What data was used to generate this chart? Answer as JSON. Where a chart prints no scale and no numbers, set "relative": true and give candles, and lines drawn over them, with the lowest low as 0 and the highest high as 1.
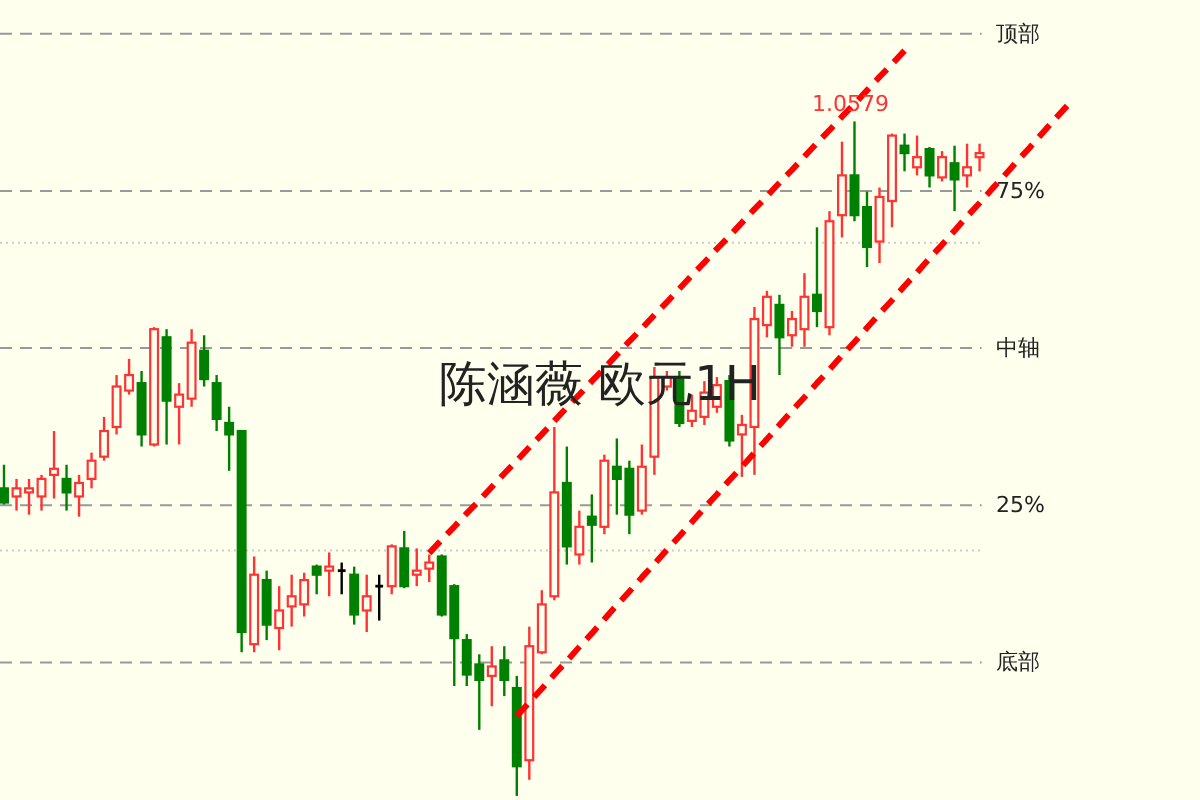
{
  "chart_data": {
    "type": "candlestick",
    "title": "陈涵薇 欧元1H",
    "relative": true,
    "categories": [
      null,
      null,
      null,
      null,
      null,
      null,
      null,
      null,
      null,
      null,
      null,
      null,
      null,
      null,
      null,
      null,
      null,
      null,
      null,
      null,
      null,
      null,
      null,
      null,
      null,
      null,
      null,
      null,
      null,
      null,
      null,
      null,
      null,
      null,
      null,
      null,
      null,
      null,
      null,
      null,
      null,
      null,
      null,
      null,
      null,
      null,
      null,
      null,
      null,
      null,
      null,
      null,
      null,
      null,
      null,
      null,
      null,
      null,
      null,
      null,
      null,
      null,
      null,
      null,
      null,
      null,
      null,
      null,
      null,
      null,
      null,
      null,
      null,
      null,
      null,
      null,
      null,
      null,
      null,
      null,
      null,
      null,
      null,
      null,
      null,
      null
    ],
    "ohlc": [
      [
        0.456,
        0.491,
        0.432,
        0.435
      ],
      [
        0.444,
        0.47,
        0.423,
        0.456
      ],
      [
        0.45,
        0.47,
        0.417,
        0.456
      ],
      [
        0.444,
        0.476,
        0.423,
        0.47
      ],
      [
        0.476,
        0.541,
        0.441,
        0.485
      ],
      [
        0.47,
        0.491,
        0.423,
        0.45
      ],
      [
        0.444,
        0.476,
        0.414,
        0.464
      ],
      [
        0.47,
        0.509,
        0.456,
        0.497
      ],
      [
        0.503,
        0.562,
        0.497,
        0.541
      ],
      [
        0.547,
        0.624,
        0.536,
        0.607
      ],
      [
        0.601,
        0.648,
        0.595,
        0.624
      ],
      [
        0.612,
        0.63,
        0.518,
        0.536
      ],
      [
        0.521,
        0.695,
        0.518,
        0.692
      ],
      [
        0.68,
        0.692,
        0.521,
        0.586
      ],
      [
        0.577,
        0.612,
        0.521,
        0.595
      ],
      [
        0.589,
        0.692,
        0.577,
        0.672
      ],
      [
        0.66,
        0.683,
        0.607,
        0.618
      ],
      [
        0.612,
        0.624,
        0.541,
        0.559
      ],
      [
        0.553,
        0.577,
        0.482,
        0.536
      ],
      [
        0.541,
        0.541,
        0.213,
        0.243
      ],
      [
        0.225,
        0.355,
        0.213,
        0.328
      ],
      [
        0.32,
        0.334,
        0.231,
        0.254
      ],
      [
        0.249,
        0.311,
        0.216,
        0.275
      ],
      [
        0.281,
        0.328,
        0.251,
        0.296
      ],
      [
        0.284,
        0.331,
        0.266,
        0.32
      ],
      [
        0.34,
        0.343,
        0.299,
        0.328
      ],
      [
        0.334,
        0.361,
        0.296,
        0.34
      ],
      [
        0.334,
        0.346,
        0.299,
        0.334
      ],
      [
        0.328,
        0.34,
        0.254,
        0.269
      ],
      [
        0.275,
        0.328,
        0.243,
        0.296
      ],
      [
        0.311,
        0.328,
        0.26,
        0.311
      ],
      [
        0.311,
        0.373,
        0.299,
        0.37
      ],
      [
        0.367,
        0.393,
        0.308,
        0.311
      ],
      [
        0.328,
        0.367,
        0.311,
        0.334
      ],
      [
        0.337,
        0.358,
        0.317,
        0.346
      ],
      [
        0.355,
        0.358,
        0.266,
        0.269
      ],
      [
        0.311,
        0.314,
        0.163,
        0.234
      ],
      [
        0.231,
        0.24,
        0.163,
        0.18
      ],
      [
        0.195,
        0.21,
        0.098,
        0.172
      ],
      [
        0.178,
        0.222,
        0.133,
        0.192
      ],
      [
        0.201,
        0.222,
        0.148,
        0.172
      ],
      [
        0.16,
        0.178,
        0,
        0.044
      ],
      [
        0.053,
        0.251,
        0.024,
        0.222
      ],
      [
        0.213,
        0.305,
        0.21,
        0.284
      ],
      [
        0.296,
        0.547,
        0.29,
        0.45
      ],
      [
        0.464,
        0.518,
        0.343,
        0.37
      ],
      [
        0.358,
        0.423,
        0.343,
        0.399
      ],
      [
        0.414,
        0.447,
        0.346,
        0.402
      ],
      [
        0.399,
        0.506,
        0.388,
        0.497
      ],
      [
        0.488,
        0.53,
        0.417,
        0.47
      ],
      [
        0.485,
        0.497,
        0.388,
        0.417
      ],
      [
        0.423,
        0.521,
        0.417,
        0.488
      ],
      [
        0.503,
        0.636,
        0.476,
        0.621
      ],
      [
        0.607,
        0.63,
        0.601,
        0.621
      ],
      [
        0.621,
        0.63,
        0.547,
        0.553
      ],
      [
        0.556,
        0.595,
        0.547,
        0.571
      ],
      [
        0.562,
        0.615,
        0.55,
        0.598
      ],
      [
        0.577,
        0.621,
        0.568,
        0.609
      ],
      [
        0.615,
        0.624,
        0.518,
        0.527
      ],
      [
        0.536,
        0.565,
        0.473,
        0.55
      ],
      [
        0.547,
        0.725,
        0.476,
        0.707
      ],
      [
        0.698,
        0.749,
        0.68,
        0.74
      ],
      [
        0.728,
        0.743,
        0.624,
        0.68
      ],
      [
        0.683,
        0.719,
        0.666,
        0.707
      ],
      [
        0.692,
        0.775,
        0.666,
        0.74
      ],
      [
        0.743,
        0.843,
        0.695,
        0.719
      ],
      [
        0.695,
        0.867,
        0.683,
        0.852
      ],
      [
        0.861,
        0.97,
        0.828,
        0.92
      ],
      [
        0.92,
        1,
        0.852,
        0.861
      ],
      [
        0.873,
        0.896,
        0.784,
        0.814
      ],
      [
        0.822,
        0.902,
        0.79,
        0.888
      ],
      [
        0.882,
        0.982,
        0.843,
        0.979
      ],
      [
        0.964,
        0.982,
        0.926,
        0.953
      ],
      [
        0.932,
        0.979,
        0.92,
        0.947
      ],
      [
        0.959,
        0.962,
        0.902,
        0.92
      ],
      [
        0.917,
        0.956,
        0.911,
        0.947
      ],
      [
        0.938,
        0.964,
        0.867,
        0.914
      ],
      [
        0.92,
        0.967,
        0.902,
        0.932
      ],
      [
        0.947,
        0.967,
        0.926,
        0.953
      ],
      null,
      null,
      null,
      null,
      null,
      null,
      null
    ],
    "colors": [
      "#008000",
      "#ff3333",
      "#ff3333",
      "#ff3333",
      "#ff3333",
      "#008000",
      "#ff3333",
      "#ff3333",
      "#ff3333",
      "#ff3333",
      "#ff3333",
      "#008000",
      "#ff3333",
      "#008000",
      "#ff3333",
      "#ff3333",
      "#008000",
      "#008000",
      "#008000",
      "#008000",
      "#ff3333",
      "#008000",
      "#ff3333",
      "#ff3333",
      "#ff3333",
      "#008000",
      "#ff3333",
      "#000000",
      "#008000",
      "#ff3333",
      "#000000",
      "#ff3333",
      "#008000",
      "#ff3333",
      "#ff3333",
      "#008000",
      "#008000",
      "#008000",
      "#008000",
      "#ff3333",
      "#008000",
      "#008000",
      "#ff3333",
      "#ff3333",
      "#ff3333",
      "#008000",
      "#ff3333",
      "#008000",
      "#ff3333",
      "#008000",
      "#008000",
      "#ff3333",
      "#ff3333",
      "#ff3333",
      "#008000",
      "#ff3333",
      "#ff3333",
      "#ff3333",
      "#008000",
      "#ff3333",
      "#ff3333",
      "#ff3333",
      "#008000",
      "#ff3333",
      "#ff3333",
      "#008000",
      "#ff3333",
      "#ff3333",
      "#008000",
      "#008000",
      "#ff3333",
      "#ff3333",
      "#008000",
      "#ff3333",
      "#008000",
      "#ff3333",
      "#008000",
      "#ff3333",
      "#ff3333",
      null,
      null,
      null,
      null,
      null,
      null,
      null
    ],
    "series": [
      {
        "type": "line",
        "color": "#ff0000",
        "line_style": "dashed",
        "values": [
          null,
          null,
          null,
          null,
          null,
          null,
          null,
          null,
          null,
          null,
          null,
          null,
          null,
          null,
          null,
          null,
          null,
          null,
          null,
          null,
          null,
          null,
          null,
          null,
          null,
          null,
          null,
          null,
          null,
          null,
          null,
          null,
          null,
          null,
          0.36,
          0.38,
          0.399,
          0.419,
          0.438,
          0.458,
          0.478,
          0.497,
          0.517,
          0.536,
          0.556,
          0.576,
          0.595,
          0.615,
          0.634,
          0.654,
          0.674,
          0.693,
          0.713,
          0.732,
          0.752,
          0.772,
          0.791,
          0.811,
          0.83,
          0.85,
          0.87,
          0.889,
          0.909,
          0.928,
          0.948,
          0.968,
          0.987,
          1.007,
          1.026,
          1.046,
          1.066,
          1.085,
          1.105,
          null,
          null,
          null,
          null,
          null,
          null,
          null,
          null,
          null,
          null,
          null,
          null,
          null
        ]
      },
      {
        "type": "line",
        "color": "#ff0000",
        "line_style": "dashed",
        "values": [
          null,
          null,
          null,
          null,
          null,
          null,
          null,
          null,
          null,
          null,
          null,
          null,
          null,
          null,
          null,
          null,
          null,
          null,
          null,
          null,
          null,
          null,
          null,
          null,
          null,
          null,
          null,
          null,
          null,
          null,
          null,
          null,
          null,
          null,
          null,
          null,
          null,
          null,
          null,
          null,
          null,
          0.118,
          0.139,
          0.159,
          0.18,
          0.2,
          0.221,
          0.241,
          0.262,
          0.283,
          0.303,
          0.324,
          0.344,
          0.365,
          0.385,
          0.406,
          0.427,
          0.447,
          0.468,
          0.488,
          0.509,
          0.529,
          0.55,
          0.571,
          0.591,
          0.612,
          0.632,
          0.653,
          0.673,
          0.694,
          0.715,
          0.735,
          0.756,
          0.776,
          0.797,
          0.817,
          0.838,
          0.859,
          0.879,
          0.9,
          0.92,
          0.941,
          0.961,
          0.982,
          1.003,
          1.023
        ]
      }
    ],
    "ref_lines": [
      {
        "axis": "y",
        "value": 1.13,
        "label": "顶部",
        "color": "#999999",
        "line_style": "dashed"
      },
      {
        "axis": "y",
        "value": 0.897,
        "color": "#999999",
        "line_style": "dashed"
      },
      {
        "axis": "y",
        "value": 0.82,
        "color": "#cccccc",
        "line_style": "dotted"
      },
      {
        "axis": "y",
        "value": 0.664,
        "label": "中轴",
        "color": "#999999",
        "line_style": "dashed"
      },
      {
        "axis": "y",
        "value": 0.431,
        "color": "#999999",
        "line_style": "dashed"
      },
      {
        "axis": "y",
        "value": 0.364,
        "color": "#cccccc",
        "line_style": "dotted"
      },
      {
        "axis": "y",
        "value": 0.198,
        "label": "底部",
        "color": "#999999",
        "line_style": "dashed"
      }
    ],
    "annotations": [
      {
        "text": "1.0579",
        "y": 1
      },
      {
        "text": "75%",
        "y": 0.897
      },
      {
        "text": "25%",
        "y": 0.431
      }
    ]
  }
}
